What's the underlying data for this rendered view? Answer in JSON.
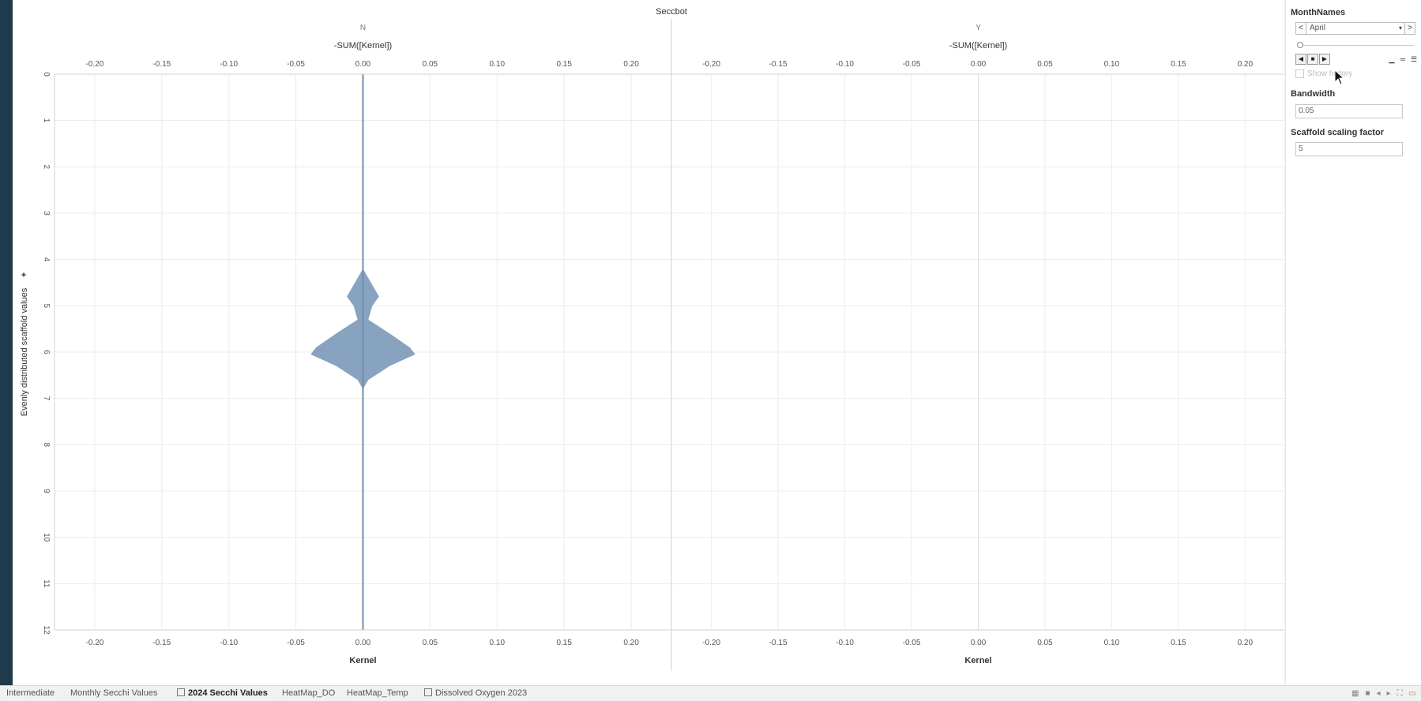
{
  "chart_data": {
    "type": "area",
    "title": "Seccbot",
    "panels": [
      {
        "header": "N",
        "top_axis_label": "-SUM([Kernel])",
        "bottom_axis_label": "Kernel",
        "violin": [
          {
            "y": 4.2,
            "half_width": 0.0
          },
          {
            "y": 4.5,
            "half_width": 0.006
          },
          {
            "y": 4.8,
            "half_width": 0.012
          },
          {
            "y": 5.0,
            "half_width": 0.007
          },
          {
            "y": 5.3,
            "half_width": 0.004
          },
          {
            "y": 5.6,
            "half_width": 0.02
          },
          {
            "y": 5.9,
            "half_width": 0.035
          },
          {
            "y": 6.05,
            "half_width": 0.039
          },
          {
            "y": 6.3,
            "half_width": 0.02
          },
          {
            "y": 6.6,
            "half_width": 0.004
          },
          {
            "y": 6.8,
            "half_width": 0.0
          }
        ]
      },
      {
        "header": "Y",
        "top_axis_label": "-SUM([Kernel])",
        "bottom_axis_label": "Kernel",
        "violin": []
      }
    ],
    "x_ticks": [
      "-0.20",
      "-0.15",
      "-0.10",
      "-0.05",
      "0.00",
      "0.05",
      "0.10",
      "0.15",
      "0.20"
    ],
    "x_tick_values": [
      -0.2,
      -0.15,
      -0.1,
      -0.05,
      0.0,
      0.05,
      0.1,
      0.15,
      0.2
    ],
    "xlim": [
      -0.23,
      0.23
    ],
    "ylabel": "Evenly distributed scaffold values",
    "y_ticks": [
      "0",
      "1",
      "2",
      "3",
      "4",
      "5",
      "6",
      "7",
      "8",
      "9",
      "10",
      "11",
      "12"
    ],
    "y_tick_values": [
      0,
      1,
      2,
      3,
      4,
      5,
      6,
      7,
      8,
      9,
      10,
      11,
      12
    ],
    "ylim": [
      0,
      12
    ],
    "series_color": "#7b99b8",
    "grid": true
  },
  "panel": {
    "month_names_title": "MonthNames",
    "month_value": "April",
    "prev_symbol": "<",
    "next_symbol": ">",
    "dropdown_symbol": "▾",
    "show_history_label": "Show history",
    "bandwidth_title": "Bandwidth",
    "bandwidth_value": "0.05",
    "scaling_title": "Scaffold scaling factor",
    "scaling_value": "5"
  },
  "tabs": [
    {
      "label": "Intermediate",
      "active": false
    },
    {
      "label": "Monthly Secchi Values",
      "active": false
    },
    {
      "label": "2024 Secchi Values",
      "active": true
    },
    {
      "label": "HeatMap_DO",
      "active": false
    },
    {
      "label": "HeatMap_Temp",
      "active": false
    },
    {
      "label": "Dissolved Oxygen 2023",
      "active": false
    }
  ],
  "colors": {
    "frame": "#1e3a4c",
    "grid": "#ececec",
    "axis": "#d0d0d0",
    "zero_line": "#6e8fae"
  }
}
